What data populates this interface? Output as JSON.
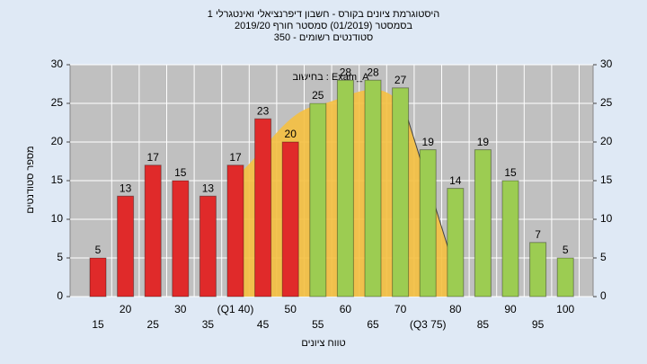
{
  "chart_data": {
    "type": "bar",
    "title": "היסטוגרמת ציונים בקורס - חשבון דיפרנציאלי ואינטגרלי 1",
    "subtitle": "בסמסטר  (01/2019)  סמסטר חורף  2019/20",
    "subtitle2": "סטודנטים רשומים - 350",
    "annotation": "בחישוב : Exam_A",
    "x_label": "טווח ציונים",
    "y_label": "מספר סטודנטים",
    "categories": [
      "15",
      "20",
      "25",
      "30",
      "35",
      "(Q1 40)",
      "45",
      "50",
      "55",
      "60",
      "65",
      "70",
      "(Q3 75)",
      "80",
      "85",
      "90",
      "95",
      "100"
    ],
    "values": [
      5,
      13,
      17,
      15,
      13,
      17,
      23,
      20,
      25,
      28,
      28,
      27,
      19,
      14,
      19,
      15,
      7,
      5
    ],
    "colors": [
      "#e02a2a",
      "#e02a2a",
      "#e02a2a",
      "#e02a2a",
      "#e02a2a",
      "#e02a2a",
      "#e02a2a",
      "#e02a2a",
      "#9ccc52",
      "#9ccc52",
      "#9ccc52",
      "#9ccc52",
      "#9ccc52",
      "#9ccc52",
      "#9ccc52",
      "#9ccc52",
      "#9ccc52",
      "#9ccc52"
    ],
    "ylim": [
      0,
      30
    ],
    "yticks": [
      0,
      5,
      10,
      15,
      20,
      25,
      30
    ],
    "grid": true
  }
}
